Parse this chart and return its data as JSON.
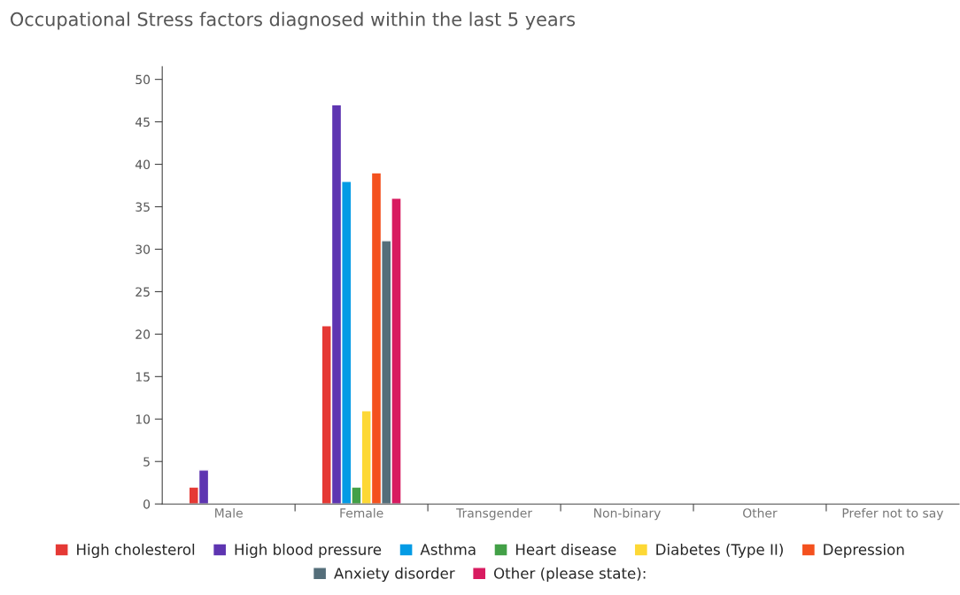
{
  "chart_data": {
    "type": "bar",
    "title": "Occupational Stress factors diagnosed within the last 5 years",
    "categories": [
      "Male",
      "Female",
      "Transgender",
      "Non-binary",
      "Other",
      "Prefer not to say"
    ],
    "series": [
      {
        "name": "High cholesterol",
        "color": "#e53935",
        "values": [
          2,
          21,
          null,
          null,
          null,
          null
        ]
      },
      {
        "name": "High blood pressure",
        "color": "#5e35b1",
        "values": [
          4,
          47,
          null,
          null,
          null,
          null
        ]
      },
      {
        "name": "Asthma",
        "color": "#039be5",
        "values": [
          null,
          38,
          null,
          null,
          null,
          null
        ]
      },
      {
        "name": "Heart disease",
        "color": "#43a047",
        "values": [
          null,
          2,
          null,
          null,
          null,
          null
        ]
      },
      {
        "name": "Diabetes (Type II)",
        "color": "#fdd835",
        "values": [
          null,
          11,
          null,
          null,
          null,
          null
        ]
      },
      {
        "name": "Depression",
        "color": "#f4511e",
        "values": [
          null,
          39,
          null,
          null,
          null,
          null
        ]
      },
      {
        "name": "Anxiety disorder",
        "color": "#546e7a",
        "values": [
          null,
          31,
          null,
          null,
          null,
          null
        ]
      },
      {
        "name": "Other (please state):",
        "color": "#d81b60",
        "values": [
          null,
          36,
          null,
          null,
          null,
          null
        ]
      }
    ],
    "ylim": [
      0,
      51.5
    ],
    "yticks": [
      0,
      5,
      10,
      15,
      20,
      25,
      30,
      35,
      40,
      45,
      50
    ],
    "grid": false,
    "legend": "bottom"
  }
}
